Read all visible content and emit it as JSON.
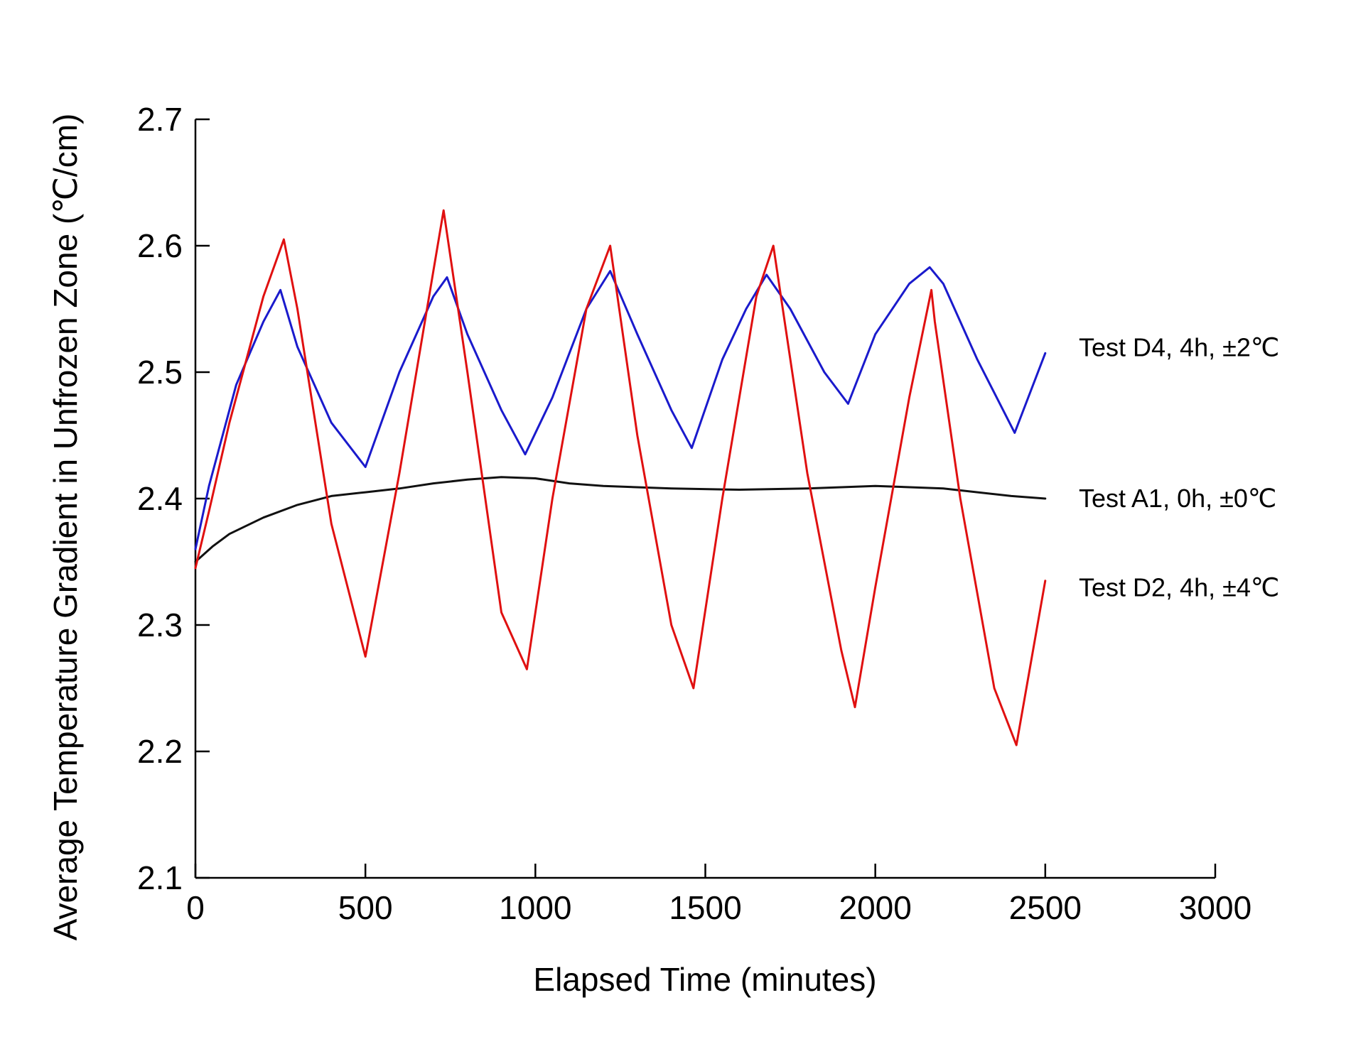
{
  "chart_data": {
    "type": "line",
    "title": "",
    "xlabel": "Elapsed Time (minutes)",
    "ylabel": "Average Temperature Gradient in Unfrozen Zone (℃/cm)",
    "xlim": [
      0,
      3000
    ],
    "ylim": [
      2.1,
      2.7
    ],
    "xticks": [
      0,
      500,
      1000,
      1500,
      2000,
      2500,
      3000
    ],
    "yticks": [
      2.1,
      2.2,
      2.3,
      2.4,
      2.5,
      2.6,
      2.7
    ],
    "xtick_labels": [
      "0",
      "500",
      "1000",
      "1500",
      "2000",
      "2500",
      "3000"
    ],
    "ytick_labels": [
      "2.1",
      "2.2",
      "2.3",
      "2.4",
      "2.5",
      "2.6",
      "2.7"
    ],
    "grid": false,
    "legend": "direct labels at right end of lines",
    "series": [
      {
        "name": "Test D4, 4h, ±2℃",
        "color": "#1a1acc",
        "x": [
          0,
          40,
          120,
          200,
          250,
          300,
          400,
          500,
          600,
          700,
          740,
          800,
          900,
          970,
          1050,
          1150,
          1220,
          1300,
          1400,
          1460,
          1550,
          1620,
          1680,
          1750,
          1850,
          1920,
          2000,
          2100,
          2160,
          2200,
          2300,
          2410,
          2500
        ],
        "y": [
          2.36,
          2.41,
          2.49,
          2.54,
          2.565,
          2.52,
          2.46,
          2.425,
          2.5,
          2.56,
          2.575,
          2.53,
          2.47,
          2.435,
          2.48,
          2.55,
          2.58,
          2.53,
          2.47,
          2.44,
          2.51,
          2.55,
          2.577,
          2.55,
          2.5,
          2.475,
          2.53,
          2.57,
          2.583,
          2.57,
          2.51,
          2.452,
          2.515
        ]
      },
      {
        "name": "Test A1, 0h, ±0℃",
        "color": "#111111",
        "x": [
          0,
          50,
          100,
          200,
          300,
          400,
          500,
          600,
          700,
          800,
          900,
          1000,
          1100,
          1200,
          1400,
          1600,
          1800,
          2000,
          2200,
          2400,
          2500
        ],
        "y": [
          2.35,
          2.362,
          2.372,
          2.385,
          2.395,
          2.402,
          2.405,
          2.408,
          2.412,
          2.415,
          2.417,
          2.416,
          2.412,
          2.41,
          2.408,
          2.407,
          2.408,
          2.41,
          2.408,
          2.402,
          2.4
        ]
      },
      {
        "name": "Test D2, 4h, ±4℃",
        "color": "#e01010",
        "x": [
          0,
          40,
          100,
          200,
          260,
          300,
          400,
          500,
          600,
          700,
          730,
          800,
          900,
          975,
          1050,
          1150,
          1220,
          1300,
          1400,
          1465,
          1550,
          1650,
          1700,
          1800,
          1900,
          1940,
          2000,
          2100,
          2165,
          2175,
          2250,
          2350,
          2415,
          2500
        ],
        "y": [
          2.345,
          2.39,
          2.46,
          2.56,
          2.605,
          2.55,
          2.38,
          2.275,
          2.42,
          2.58,
          2.628,
          2.5,
          2.31,
          2.265,
          2.4,
          2.55,
          2.6,
          2.45,
          2.3,
          2.25,
          2.4,
          2.56,
          2.6,
          2.42,
          2.28,
          2.235,
          2.33,
          2.48,
          2.565,
          2.54,
          2.4,
          2.25,
          2.205,
          2.335
        ]
      }
    ]
  }
}
